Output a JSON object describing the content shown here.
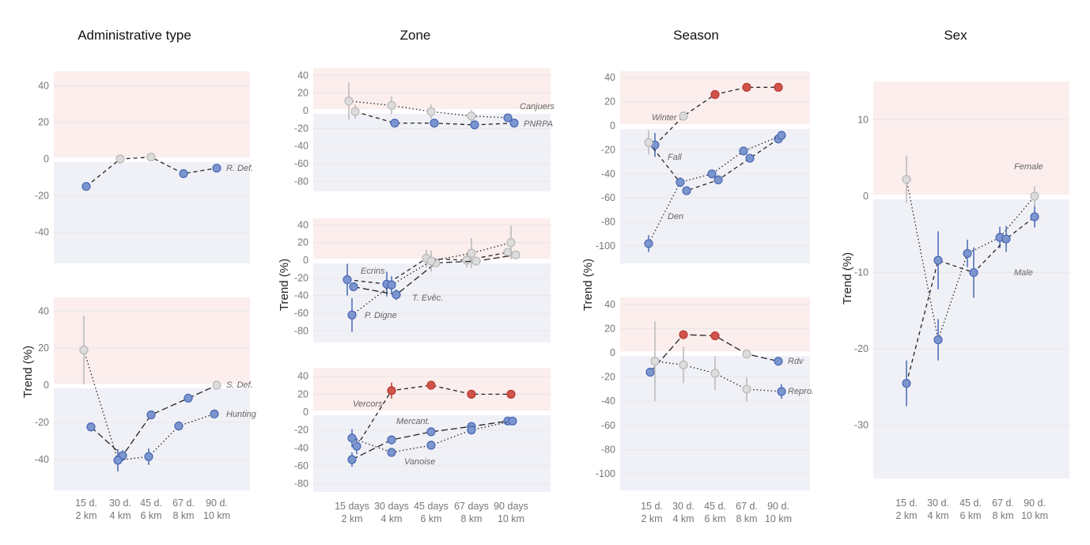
{
  "colors": {
    "positive_band": "#fbeeec",
    "negative_band": "#f0f1f7",
    "gridline": "#e8e6ea",
    "significant_negative": "#7b95cf",
    "significant_negative_edge": "#4a68b3",
    "significant_positive": "#d0534c",
    "significant_positive_edge": "#b83a33",
    "non_significant": "#dcdcdc",
    "non_significant_edge": "#b8b8b8",
    "line": "#222222"
  },
  "columns": [
    {
      "title": "Administrative type",
      "y_label": "Trend (%)",
      "x_ticks": [
        "15 d.\n2 km",
        "30 d.\n4 km",
        "45 d.\n6 km",
        "67 d.\n8 km",
        "90 d.\n10 km"
      ]
    },
    {
      "title": "Zone",
      "y_label": "Trend (%)",
      "x_ticks": [
        "15 days\n2 km",
        "30 days\n4 km",
        "45 days\n6 km",
        "67 days\n8 km",
        "90 days\n10 km"
      ]
    },
    {
      "title": "Season",
      "y_label": "Trend (%)",
      "x_ticks": [
        "15 d.\n2 km",
        "30 d.\n4 km",
        "45 d.\n6 km",
        "67 d.\n8 km",
        "90 d.\n10 km"
      ]
    },
    {
      "title": "Sex",
      "y_label": "Trend (%)",
      "x_ticks": [
        "15 d.\n2 km",
        "30 d.\n4 km",
        "45 d.\n6 km",
        "67 d.\n8 km",
        "90 d.\n10 km"
      ]
    }
  ],
  "chart_data": [
    {
      "type": "line",
      "column": 0,
      "panel": "admin-top",
      "title": "Administrative type",
      "ylabel": "",
      "ylim": [
        -57,
        48
      ],
      "yticks": [
        40,
        20,
        0,
        -20,
        -40
      ],
      "x": [
        "15 d. 2 km",
        "30 d. 4 km",
        "45 d. 6 km",
        "67 d. 8 km",
        "90 d. 10 km"
      ],
      "series": [
        {
          "name": "R. Def.",
          "dash": "dashed",
          "values": [
            -15,
            0,
            1,
            -8,
            -5
          ],
          "err": [
            0,
            1,
            0,
            0,
            0
          ],
          "status": [
            "neg",
            "ns",
            "ns",
            "neg",
            "neg"
          ]
        }
      ]
    },
    {
      "type": "line",
      "column": 0,
      "panel": "admin-bottom",
      "ylabel": "Trend (%)",
      "ylim": [
        -56,
        48
      ],
      "yticks": [
        40,
        20,
        0,
        -20,
        -40
      ],
      "x": [
        "15 d. 2 km",
        "30 d. 4 km",
        "45 d. 6 km",
        "67 d. 8 km",
        "90 d. 10 km"
      ],
      "series": [
        {
          "name": "S. Def.",
          "dash": "longdash",
          "values": [
            -22.5,
            -38,
            -16,
            -7,
            0
          ],
          "err": [
            0,
            3,
            0,
            0,
            0
          ],
          "status": [
            "neg",
            "neg",
            "neg",
            "neg",
            "ns"
          ]
        },
        {
          "name": "Hunting",
          "dash": "dotted",
          "values": [
            19,
            -40.5,
            -38.5,
            -22,
            -15.5
          ],
          "err": [
            18.5,
            6,
            4.5,
            2.5,
            0
          ],
          "status": [
            "ns",
            "neg",
            "neg",
            "neg",
            "neg"
          ]
        }
      ]
    },
    {
      "type": "line",
      "column": 1,
      "panel": "zone-top",
      "ylim": [
        -92,
        48
      ],
      "yticks": [
        40,
        20,
        0,
        -20,
        -40,
        -60,
        -80
      ],
      "x": [
        "15 days 2 km",
        "30 days 4 km",
        "45 days 6 km",
        "67 days 8 km",
        "90 days 10 km"
      ],
      "series": [
        {
          "name": "Canjuers",
          "dash": "dotted",
          "values": [
            11,
            6,
            -1,
            -6,
            -8
          ],
          "err": [
            21,
            10,
            8,
            7,
            0
          ],
          "status": [
            "ns",
            "ns",
            "ns",
            "ns",
            "neg"
          ]
        },
        {
          "name": "PNRPA",
          "dash": "dashed",
          "values": [
            -1,
            -14,
            -14,
            -16,
            -14
          ],
          "err": [
            8,
            0,
            0,
            0,
            0
          ],
          "status": [
            "ns",
            "neg",
            "neg",
            "neg",
            "neg"
          ]
        }
      ]
    },
    {
      "type": "line",
      "column": 1,
      "panel": "zone-middle",
      "ylim": [
        -92,
        48
      ],
      "yticks": [
        40,
        20,
        0,
        -20,
        -40,
        -60,
        -80
      ],
      "x": [
        "15 days 2 km",
        "30 days 4 km",
        "45 days 6 km",
        "67 days 8 km",
        "90 days 10 km"
      ],
      "series": [
        {
          "name": "Ecrins",
          "dash": "dashed",
          "values": [
            -22,
            -27,
            2,
            0,
            9
          ],
          "err": [
            18,
            14,
            10,
            8,
            0
          ],
          "status": [
            "neg",
            "neg",
            "ns",
            "ns",
            "ns"
          ]
        },
        {
          "name": "T. Evêc.",
          "dash": "longdash",
          "values": [
            -30,
            -39,
            -3,
            -1,
            6
          ],
          "err": [
            5,
            6,
            0,
            0,
            0
          ],
          "status": [
            "neg",
            "neg",
            "ns",
            "ns",
            "ns"
          ]
        },
        {
          "name": "P. Digne",
          "dash": "dotted",
          "values": [
            -62,
            -28,
            -1,
            8,
            20
          ],
          "err": [
            19,
            10,
            12,
            17,
            19
          ],
          "status": [
            "neg",
            "neg",
            "ns",
            "ns",
            "ns"
          ]
        }
      ]
    },
    {
      "type": "line",
      "column": 1,
      "panel": "zone-bottom",
      "ylim": [
        -92,
        48
      ],
      "yticks": [
        40,
        20,
        0,
        -20,
        -40,
        -60,
        -80
      ],
      "x": [
        "15 days 2 km",
        "30 days 4 km",
        "45 days 6 km",
        "67 days 8 km",
        "90 days 10 km"
      ],
      "series": [
        {
          "name": "Vercors",
          "dash": "dashed",
          "values": [
            -38,
            24,
            30,
            20,
            20
          ],
          "err": [
            9,
            9,
            0,
            0,
            0
          ],
          "status": [
            "neg",
            "pos",
            "pos",
            "pos",
            "pos"
          ]
        },
        {
          "name": "Mercant.",
          "dash": "longdash",
          "values": [
            -53,
            -31,
            -22,
            -16,
            -10
          ],
          "err": [
            8,
            5,
            0,
            0,
            0
          ],
          "status": [
            "neg",
            "neg",
            "neg",
            "neg",
            "neg"
          ]
        },
        {
          "name": "Vanoise",
          "dash": "dotted",
          "values": [
            -29,
            -45,
            -37,
            -20,
            -10
          ],
          "err": [
            10,
            5,
            0,
            0,
            0
          ],
          "status": [
            "neg",
            "neg",
            "neg",
            "neg",
            "neg"
          ]
        }
      ]
    },
    {
      "type": "line",
      "column": 2,
      "panel": "season-top",
      "ylim": [
        -113,
        46
      ],
      "yticks": [
        40,
        20,
        0,
        -20,
        -40,
        -60,
        -80,
        -100
      ],
      "x": [
        "15 d. 2 km",
        "30 d. 4 km",
        "45 d. 6 km",
        "67 d. 8 km",
        "90 d. 10 km"
      ],
      "series": [
        {
          "name": "Winter",
          "dash": "dashed",
          "values": [
            -16,
            8,
            26,
            32,
            32
          ],
          "err": [
            10,
            4,
            0,
            3,
            0
          ],
          "status": [
            "neg",
            "ns",
            "pos",
            "pos",
            "pos"
          ]
        },
        {
          "name": "Fall",
          "dash": "dashed",
          "values": [
            -14,
            -54,
            -45,
            -27,
            -11
          ],
          "err": [
            10,
            0,
            0,
            0,
            0
          ],
          "status": [
            "ns",
            "neg",
            "neg",
            "neg",
            "neg"
          ]
        },
        {
          "name": "Den",
          "dash": "dotted",
          "values": [
            -98,
            -47,
            -40,
            -21,
            -8
          ],
          "err": [
            7,
            4,
            0,
            0,
            0
          ],
          "status": [
            "neg",
            "neg",
            "neg",
            "neg",
            "neg"
          ]
        }
      ]
    },
    {
      "type": "line",
      "column": 2,
      "panel": "season-bottom",
      "ylim": [
        -113,
        46
      ],
      "yticks": [
        40,
        20,
        0,
        -20,
        -40,
        -60,
        -80,
        -100
      ],
      "x": [
        "15 d. 2 km",
        "30 d. 4 km",
        "45 d. 6 km",
        "67 d. 8 km",
        "90 d. 10 km"
      ],
      "series": [
        {
          "name": "Rdv",
          "dash": "longdash",
          "values": [
            -16,
            15,
            14,
            -1,
            -7
          ],
          "err": [
            0,
            0,
            0,
            0,
            0
          ],
          "status": [
            "neg",
            "pos",
            "pos",
            "ns",
            "neg"
          ]
        },
        {
          "name": "Repro.",
          "dash": "dotted",
          "values": [
            -7,
            -10,
            -17,
            -30,
            -32
          ],
          "err": [
            33,
            15,
            14,
            10,
            6
          ],
          "status": [
            "ns",
            "ns",
            "ns",
            "ns",
            "neg"
          ]
        }
      ]
    },
    {
      "type": "line",
      "column": 3,
      "panel": "sex",
      "ylim": [
        -37,
        15
      ],
      "yticks": [
        10,
        0,
        -10,
        -20,
        -30
      ],
      "x": [
        "15 d. 2 km",
        "30 d. 4 km",
        "45 d. 6 km",
        "67 d. 8 km",
        "90 d. 10 km"
      ],
      "series": [
        {
          "name": "Female",
          "dash": "dotted",
          "values": [
            2.2,
            -18.8,
            -7.5,
            -5.4,
            0
          ],
          "err": [
            3.1,
            2.7,
            1.8,
            1.4,
            1.3
          ],
          "status": [
            "ns",
            "neg",
            "neg",
            "neg",
            "ns"
          ]
        },
        {
          "name": "Male",
          "dash": "dashed",
          "values": [
            -24.5,
            -8.4,
            -10,
            -5.6,
            -2.7
          ],
          "err": [
            3,
            3.8,
            3.3,
            1.7,
            1.4
          ],
          "status": [
            "neg",
            "neg",
            "neg",
            "neg",
            "neg"
          ]
        }
      ]
    }
  ]
}
